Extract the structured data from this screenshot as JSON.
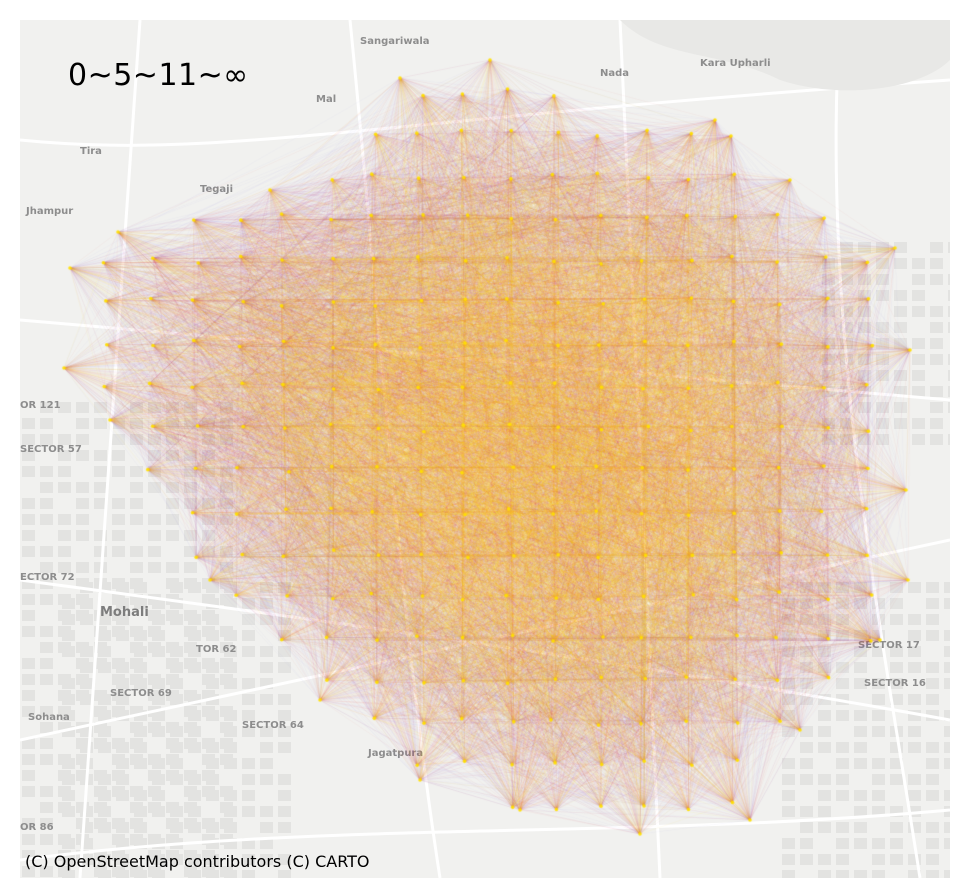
{
  "legend_label": "0~5~11~∞",
  "attribution": "(C) OpenStreetMap contributors (C) CARTO",
  "place_labels": [
    {
      "text": "Sangariwala",
      "big": false
    },
    {
      "text": "Nada",
      "big": false
    },
    {
      "text": "Kara Upharli",
      "big": false
    },
    {
      "text": "Mal",
      "big": false
    },
    {
      "text": "Tira",
      "big": false
    },
    {
      "text": "Tegaji",
      "big": false
    },
    {
      "text": "Jhampur",
      "big": false
    },
    {
      "text": "OR 121",
      "big": false
    },
    {
      "text": "SECTOR 57",
      "big": false
    },
    {
      "text": "ECTOR 72",
      "big": false
    },
    {
      "text": "Mohali",
      "big": true
    },
    {
      "text": "TOR 62",
      "big": false
    },
    {
      "text": "SECTOR 69",
      "big": false
    },
    {
      "text": "Sohana",
      "big": false
    },
    {
      "text": "SECTOR 64",
      "big": false
    },
    {
      "text": "Jagatpura",
      "big": false
    },
    {
      "text": "SECTOR 17",
      "big": false
    },
    {
      "text": "SECTOR 16",
      "big": false
    },
    {
      "text": "OR 86",
      "big": false
    }
  ],
  "colors": {
    "map_background": "#f1f1ef",
    "roads": "#ffffff",
    "urban_blocks": "#e3e3e1",
    "edge_far": "#3a2fd6",
    "edge_mid": "#e0101a",
    "edge_near": "#ffe000"
  },
  "legend_bins": [
    "0",
    "5",
    "11",
    "∞"
  ],
  "stop_grid": {
    "columns": 20,
    "rows": 20,
    "seed": 7
  }
}
